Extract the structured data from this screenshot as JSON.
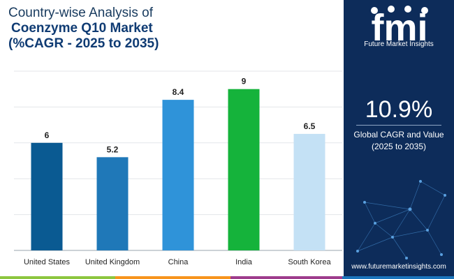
{
  "title": {
    "line1": "Country-wise Analysis of",
    "line2": "Coenzyme Q10 Market",
    "line3": "(%CAGR - 2025 to 2035)"
  },
  "brand": {
    "logo_text": "fmi",
    "name": "Future Market Insights",
    "website": "www.futuremarketinsights.com"
  },
  "stat": {
    "value": "10.9%",
    "label_line1": "Global CAGR and Value",
    "label_line2": "(2025 to 2035)"
  },
  "colors": {
    "panel": "#0d2c5a",
    "bottom_bar": [
      "#8dc63f",
      "#f7941d",
      "#9e3c8c",
      "#1b75bc"
    ]
  },
  "chart_data": {
    "type": "bar",
    "categories": [
      "United States",
      "United Kingdom",
      "China",
      "India",
      "South Korea"
    ],
    "values": [
      6,
      5.2,
      8.4,
      9,
      6.5
    ],
    "value_labels": [
      "6",
      "5.2",
      "8.4",
      "9",
      "6.5"
    ],
    "colors": [
      "#0a5a92",
      "#1f78b8",
      "#2f93d9",
      "#15b33b",
      "#c4e1f5"
    ],
    "ylim": [
      0,
      10
    ],
    "grid": true,
    "title": "",
    "xlabel": "",
    "ylabel": ""
  }
}
